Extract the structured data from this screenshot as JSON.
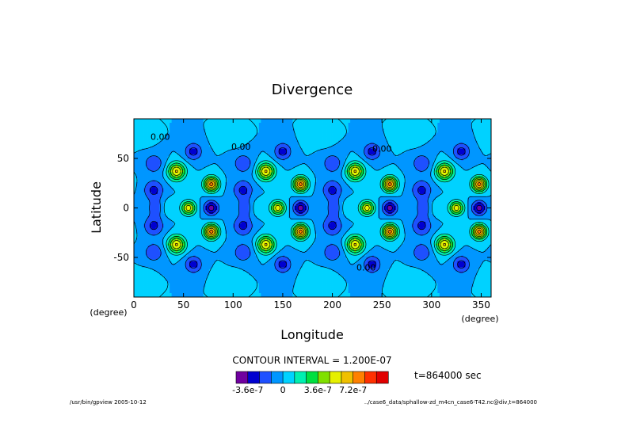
{
  "chart_data": {
    "type": "heatmap",
    "title": "Divergence",
    "xlabel": "Longitude",
    "ylabel": "Latitude",
    "x_unit": "(degree)",
    "y_unit": "(degree)",
    "xlim": [
      0,
      360
    ],
    "ylim": [
      -90,
      90
    ],
    "x_ticks": [
      "0",
      "50",
      "100",
      "150",
      "200",
      "250",
      "300",
      "350"
    ],
    "y_ticks": [
      "50",
      "0",
      "-50"
    ],
    "contour_interval_text": "CONTOUR INTERVAL = 1.200E-07",
    "contour_labels": [
      "0.00",
      "0.00",
      "0.00",
      "0.00"
    ],
    "colorbar": {
      "colors": [
        "#7000a0",
        "#0000d0",
        "#1e50ff",
        "#0096ff",
        "#00d2ff",
        "#00f0b0",
        "#00e040",
        "#80e000",
        "#e6f000",
        "#f0c000",
        "#ff8000",
        "#ff3000",
        "#e00000"
      ],
      "tick_labels": [
        "-3.6e-7",
        "0",
        "3.6e-7",
        "7.2e-7"
      ],
      "tick_values": [
        -3.6e-07,
        0,
        3.6e-07,
        7.2e-07
      ]
    },
    "pattern": {
      "zonal_wavenumber": 4,
      "equatorial_maximum_longitudes": [
        55,
        145,
        235,
        325
      ],
      "equatorial_minimum_longitudes": [
        78,
        168,
        258,
        348
      ],
      "maximum_value_approx": 7.8e-07,
      "minimum_value_approx": -4.2e-07
    }
  },
  "time_label": "t=864000 sec",
  "footer_left": "/usr/bin/gpview  2005-10-12",
  "footer_right": "../case6_data/sphallow-zd_m4cn_case6-T42.nc@div,t=864000"
}
